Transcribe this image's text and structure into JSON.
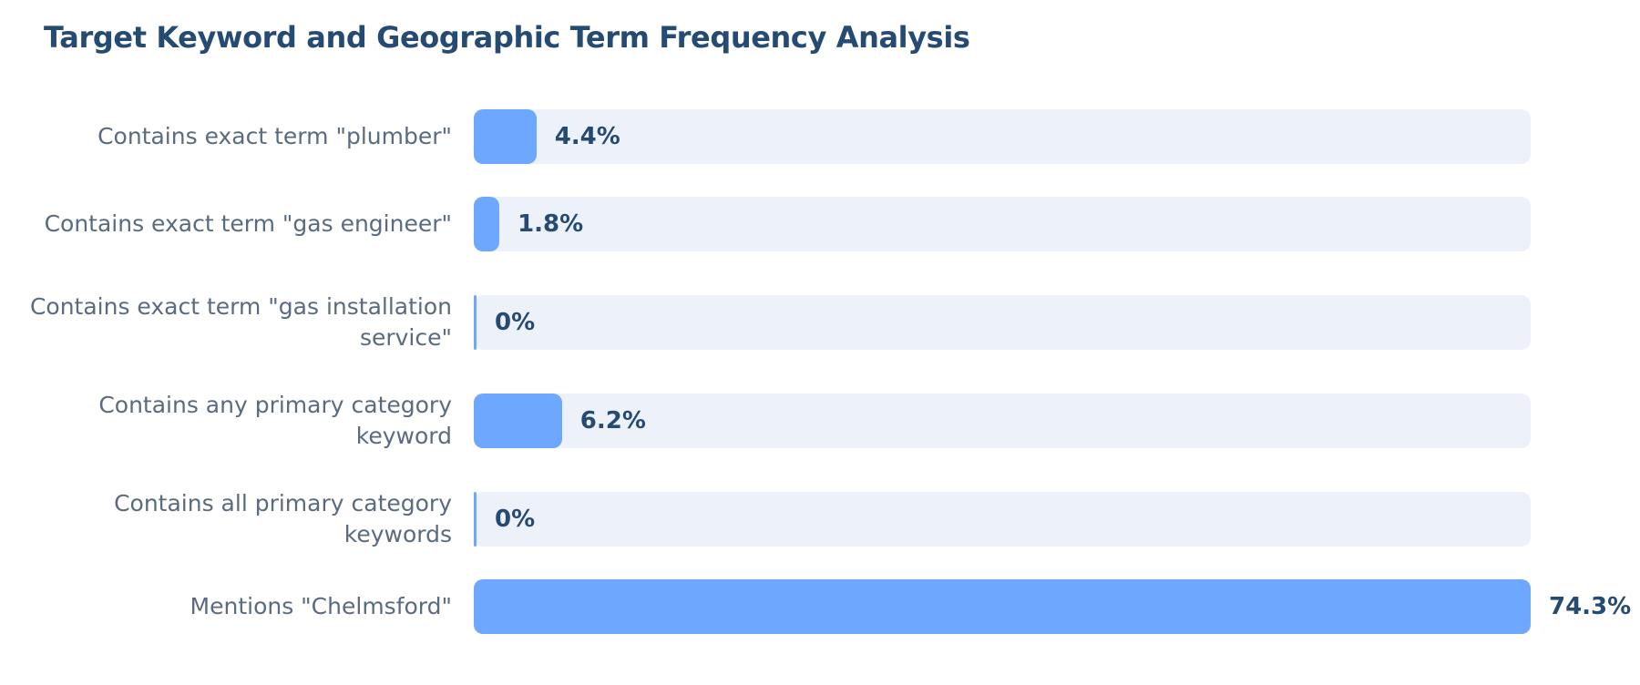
{
  "chart_data": {
    "type": "bar",
    "orientation": "horizontal",
    "title": "Target Keyword and Geographic Term Frequency Analysis",
    "categories": [
      "Contains exact term \"plumber\"",
      "Contains exact term \"gas engineer\"",
      "Contains exact term \"gas installation service\"",
      "Contains any primary category keyword",
      "Contains all primary category keywords",
      "Mentions \"Chelmsford\""
    ],
    "values": [
      4.4,
      1.8,
      0,
      6.2,
      0,
      74.3
    ],
    "value_labels": [
      "4.4%",
      "1.8%",
      "0%",
      "6.2%",
      "0%",
      "74.3%"
    ],
    "unit": "%",
    "xlim": [
      0,
      74.3
    ],
    "grid": false,
    "legend": "none"
  },
  "colors": {
    "bar": "#6ea8fe",
    "track": "#edf2fa",
    "title": "#264b73",
    "label": "#5a6b80",
    "value": "#264b73"
  }
}
